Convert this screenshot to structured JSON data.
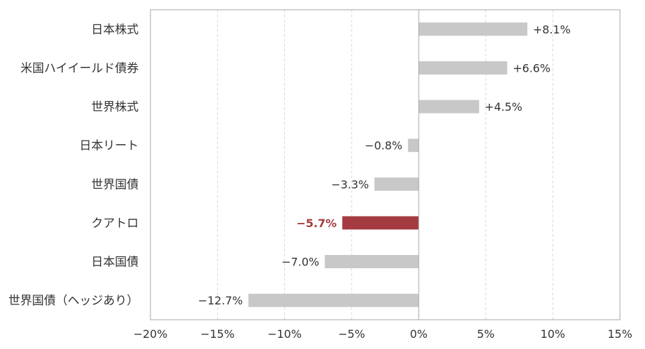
{
  "chart_data": {
    "type": "bar",
    "orientation": "horizontal",
    "title": "",
    "xlabel": "",
    "ylabel": "",
    "categories": [
      "日本株式",
      "米国ハイイールド債券",
      "世界株式",
      "日本リート",
      "世界国債",
      "クアトロ",
      "日本国債",
      "世界国債（ヘッジあり）"
    ],
    "values": [
      8.1,
      6.6,
      4.5,
      -0.8,
      -3.3,
      -5.7,
      -7.0,
      -12.7
    ],
    "value_labels": [
      "+8.1%",
      "+6.6%",
      "+4.5%",
      "−0.8%",
      "−3.3%",
      "−5.7%",
      "−7.0%",
      "−12.7%"
    ],
    "highlight_category": "クアトロ",
    "xlim": [
      -20,
      15
    ],
    "xticks": [
      -20,
      -15,
      -10,
      -5,
      0,
      5,
      10,
      15
    ],
    "xtick_labels": [
      "−20%",
      "−15%",
      "−10%",
      "−5%",
      "0%",
      "5%",
      "10%",
      "15%"
    ],
    "grid": "vertical dashed",
    "colors": {
      "bar": "#c8c8c8",
      "highlight": "#a33b40",
      "grid": "#d9d9d9",
      "frame": "#a6a6a6",
      "zero_line": "#a6a6a6"
    }
  }
}
